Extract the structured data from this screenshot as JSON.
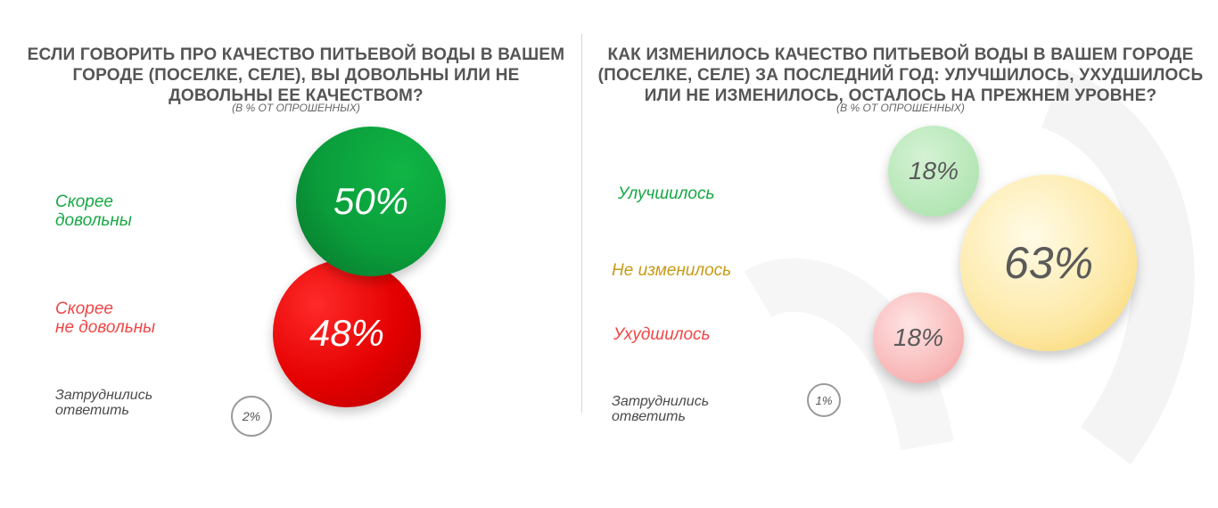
{
  "left": {
    "title": "Если говорить про качество питьевой воды в вашем городе (поселке, селе), Вы довольны или не довольны ее качеством?",
    "subtitle": "(в % от опрошенных)",
    "labels": {
      "satisfied": "Скорее\nдовольны",
      "dissatisfied": "Скорее\nне довольны",
      "undecided": "Затруднились\nответить"
    },
    "values": {
      "satisfied": "50%",
      "dissatisfied": "48%",
      "undecided": "2%"
    }
  },
  "right": {
    "title": "Как изменилось качество питьевой воды в вашем городе (поселке, селе) за последний год: улучшилось, ухудшилось или не изменилось, осталось на прежнем уровне?",
    "subtitle": "(в % от опрошенных)",
    "labels": {
      "improved": "Улучшилось",
      "unchanged": "Не изменилось",
      "worsened": "Ухудшилось",
      "undecided": "Затруднились\nответить"
    },
    "values": {
      "improved": "18%",
      "unchanged": "63%",
      "worsened": "18%",
      "undecided": "1%"
    }
  },
  "colors": {
    "green": "#0a9d3b",
    "red": "#e40000",
    "light_green": "#b4e6b5",
    "yellow": "#fde9a6",
    "pink": "#f8b8b8"
  },
  "chart_data": [
    {
      "type": "bubble",
      "title": "Если говорить про качество питьевой воды в вашем городе (поселке, селе), Вы довольны или не довольны ее качеством?",
      "subtitle": "(в % от опрошенных)",
      "categories": [
        "Скорее довольны",
        "Скорее не довольны",
        "Затруднились ответить"
      ],
      "values": [
        50,
        48,
        2
      ],
      "unit": "%"
    },
    {
      "type": "bubble",
      "title": "Как изменилось качество питьевой воды в вашем городе (поселке, селе) за последний год: улучшилось, ухудшилось или не изменилось, осталось на прежнем уровне?",
      "subtitle": "(в % от опрошенных)",
      "categories": [
        "Улучшилось",
        "Не изменилось",
        "Ухудшилось",
        "Затруднились ответить"
      ],
      "values": [
        18,
        63,
        18,
        1
      ],
      "unit": "%"
    }
  ]
}
